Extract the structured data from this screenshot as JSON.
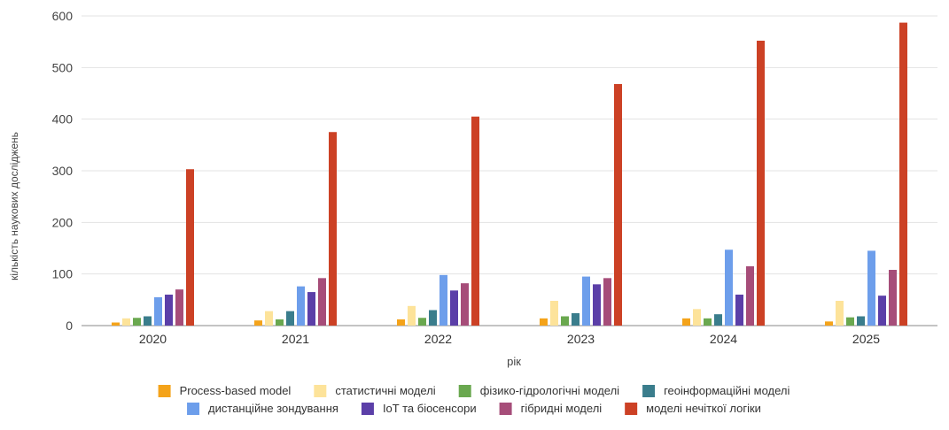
{
  "chart_data": {
    "type": "bar",
    "title": "",
    "xlabel": "рік",
    "ylabel": "кількість наукових досліджень",
    "ylim": [
      0,
      600
    ],
    "yticks": [
      0,
      100,
      200,
      300,
      400,
      500,
      600
    ],
    "grid": true,
    "legend_position": "bottom",
    "categories": [
      "2020",
      "2021",
      "2022",
      "2023",
      "2024",
      "2025"
    ],
    "series": [
      {
        "name": "Process-based model",
        "color": "#f4a31a",
        "values": [
          6,
          10,
          12,
          14,
          14,
          8
        ]
      },
      {
        "name": "статистичні моделі",
        "color": "#fde39a",
        "values": [
          14,
          28,
          38,
          48,
          32,
          48
        ]
      },
      {
        "name": "фізико-гідрологічні моделі",
        "color": "#6aa84f",
        "values": [
          15,
          12,
          15,
          18,
          14,
          16
        ]
      },
      {
        "name": "геоінформаційні моделі",
        "color": "#3a7d8c",
        "values": [
          18,
          28,
          30,
          24,
          22,
          18
        ]
      },
      {
        "name": "дистанційне зондування",
        "color": "#6d9eeb",
        "values": [
          55,
          76,
          98,
          95,
          147,
          145
        ]
      },
      {
        "name": "IoT та біосенсори",
        "color": "#5b3fa8",
        "values": [
          60,
          65,
          68,
          80,
          60,
          58
        ]
      },
      {
        "name": "гібридні моделі",
        "color": "#a64d79",
        "values": [
          70,
          92,
          82,
          92,
          115,
          108
        ]
      },
      {
        "name": "моделі нечіткої логіки",
        "color": "#cc4125",
        "values": [
          303,
          375,
          405,
          468,
          552,
          587
        ]
      }
    ]
  }
}
